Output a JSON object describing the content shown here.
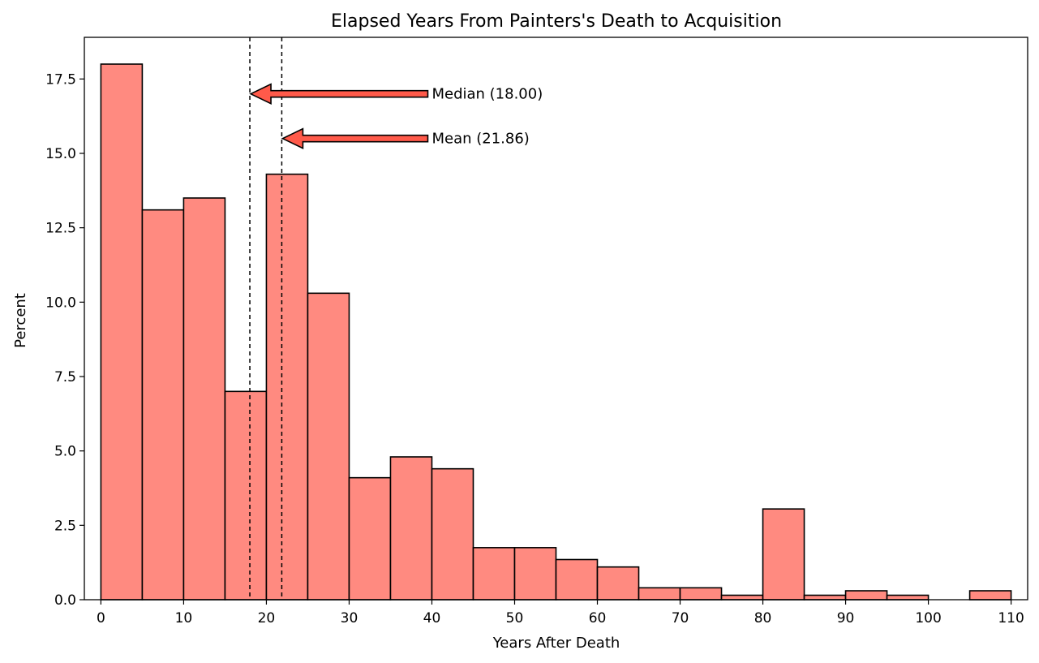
{
  "chart_data": {
    "type": "bar",
    "title": "Elapsed Years From Painters's Death to Acquisition",
    "xlabel": "Years After Death",
    "ylabel": "Percent",
    "xlim": [
      -2,
      112
    ],
    "ylim": [
      0,
      18.9
    ],
    "bin_width": 5,
    "bins": [
      {
        "start": 0,
        "value": 18.0
      },
      {
        "start": 5,
        "value": 13.1
      },
      {
        "start": 10,
        "value": 13.5
      },
      {
        "start": 15,
        "value": 7.0
      },
      {
        "start": 20,
        "value": 14.3
      },
      {
        "start": 25,
        "value": 10.3
      },
      {
        "start": 30,
        "value": 4.1
      },
      {
        "start": 35,
        "value": 4.8
      },
      {
        "start": 40,
        "value": 4.4
      },
      {
        "start": 45,
        "value": 1.75
      },
      {
        "start": 50,
        "value": 1.75
      },
      {
        "start": 55,
        "value": 1.35
      },
      {
        "start": 60,
        "value": 1.1
      },
      {
        "start": 65,
        "value": 0.4
      },
      {
        "start": 70,
        "value": 0.4
      },
      {
        "start": 75,
        "value": 0.15
      },
      {
        "start": 80,
        "value": 3.05
      },
      {
        "start": 85,
        "value": 0.15
      },
      {
        "start": 90,
        "value": 0.3
      },
      {
        "start": 95,
        "value": 0.15
      },
      {
        "start": 100,
        "value": 0.0
      },
      {
        "start": 105,
        "value": 0.3
      }
    ],
    "x_ticks": [
      0,
      10,
      20,
      30,
      40,
      50,
      60,
      70,
      80,
      90,
      100,
      110
    ],
    "x_tick_labels": [
      "0",
      "10",
      "20",
      "30",
      "40",
      "50",
      "60",
      "70",
      "80",
      "90",
      "100",
      "110"
    ],
    "y_ticks": [
      0,
      2.5,
      5.0,
      7.5,
      10.0,
      12.5,
      15.0,
      17.5
    ],
    "y_tick_labels": [
      "0.0",
      "2.5",
      "5.0",
      "7.5",
      "10.0",
      "12.5",
      "15.0",
      "17.5"
    ],
    "reference_lines": [
      {
        "name": "median",
        "x": 18.0,
        "label": "Median (18.00)",
        "arrow_y": 17.0,
        "text_x": 40
      },
      {
        "name": "mean",
        "x": 21.86,
        "label": "Mean (21.86)",
        "arrow_y": 15.5,
        "text_x": 40
      }
    ],
    "colors": {
      "bar_fill": "#FF8A80",
      "bar_edge": "#000000",
      "arrow_fill": "#FF5A4A",
      "ref_line": "#000000"
    }
  }
}
